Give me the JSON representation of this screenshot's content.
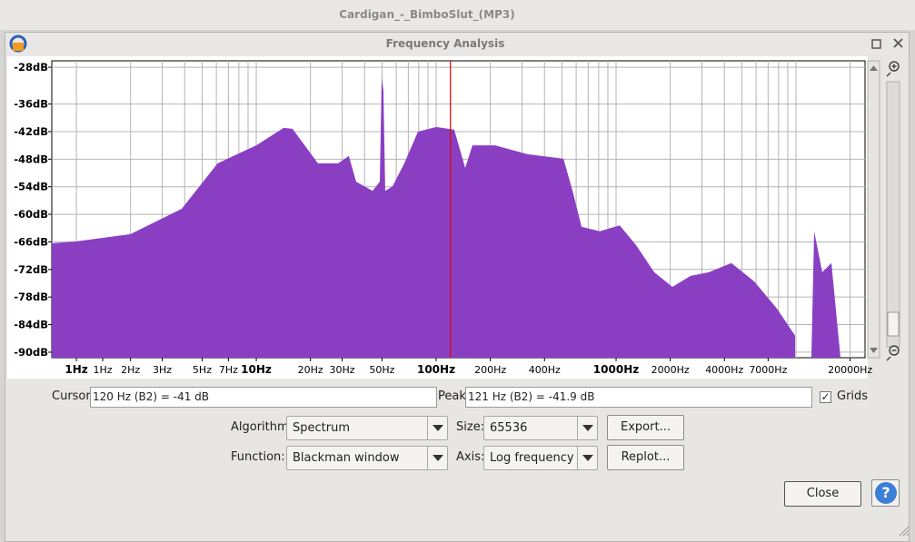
{
  "window": {
    "title": "Cardigan_-_BimboSlut_(MP3)"
  },
  "dialog": {
    "title": "Frequency Analysis",
    "cursor": {
      "label": "Cursor:",
      "value": "120 Hz (B2) = -41 dB"
    },
    "peak": {
      "label": "Peak:",
      "value": "121 Hz (B2) = -41.9 dB"
    },
    "grids": {
      "label": "Grids",
      "checked": true
    },
    "algorithm": {
      "label": "Algorithm:",
      "value": "Spectrum"
    },
    "size": {
      "label": "Size:",
      "value": "65536"
    },
    "function": {
      "label": "Function:",
      "value": "Blackman window"
    },
    "axis": {
      "label": "Axis:",
      "value": "Log frequency"
    },
    "buttons": {
      "export": "Export...",
      "replot": "Replot...",
      "close": "Close",
      "help": "?"
    }
  },
  "chart_data": {
    "type": "area",
    "log_x": true,
    "grid": true,
    "color": "#8a3fc3",
    "x": [
      0.73,
      1,
      2,
      3.85,
      6.1,
      10,
      14.2,
      15.9,
      22,
      28.5,
      32.7,
      35.9,
      44.3,
      48.6,
      49.8,
      50.9,
      52.1,
      57.2,
      66.5,
      79.2,
      100,
      126,
      145,
      159,
      213,
      320,
      510,
      573,
      643,
      811,
      1047,
      1291,
      1630,
      2056,
      2594,
      3274,
      4375,
      5860,
      7837,
      9890,
      10500,
      12190,
      12620,
      14000,
      15740,
      17660
    ],
    "values": [
      -66.3,
      -65.9,
      -64.3,
      -58.8,
      -48.9,
      -45.0,
      -41.2,
      -41.4,
      -48.9,
      -48.9,
      -47.3,
      -52.9,
      -54.9,
      -52.9,
      -30.2,
      -33.1,
      -54.9,
      -53.9,
      -48.9,
      -42.0,
      -41.0,
      -41.6,
      -49.9,
      -45.0,
      -45.0,
      -46.9,
      -47.9,
      -54.9,
      -62.7,
      -63.7,
      -62.4,
      -66.7,
      -72.6,
      -75.8,
      -73.4,
      -72.6,
      -70.6,
      -74.6,
      -80.5,
      -86.4,
      null,
      -90.4,
      -63.7,
      -72.6,
      -70.6,
      -91.0
    ],
    "xlim": [
      0.73,
      24200
    ],
    "ylim": [
      -91.2,
      -26.6
    ],
    "yticks": [
      {
        "value": -28,
        "label": "-28dB"
      },
      {
        "value": -36,
        "label": "-36dB"
      },
      {
        "value": -42,
        "label": "-42dB"
      },
      {
        "value": -48,
        "label": "-48dB"
      },
      {
        "value": -54,
        "label": "-54dB"
      },
      {
        "value": -60,
        "label": "-60dB"
      },
      {
        "value": -66,
        "label": "-66dB"
      },
      {
        "value": -72,
        "label": "-72dB"
      },
      {
        "value": -78,
        "label": "-78dB"
      },
      {
        "value": -84,
        "label": "-84dB"
      },
      {
        "value": -90,
        "label": "-90dB"
      }
    ],
    "xticks": [
      {
        "value": 1,
        "label": "1Hz"
      },
      {
        "value": 1.4,
        "label": "1Hz"
      },
      {
        "value": 2,
        "label": "2Hz"
      },
      {
        "value": 3,
        "label": "3Hz"
      },
      {
        "value": 5,
        "label": "5Hz"
      },
      {
        "value": 7,
        "label": "7Hz"
      },
      {
        "value": 10,
        "label": "10Hz"
      },
      {
        "value": 20,
        "label": "20Hz"
      },
      {
        "value": 30,
        "label": "30Hz"
      },
      {
        "value": 50,
        "label": "50Hz"
      },
      {
        "value": 100,
        "label": "100Hz"
      },
      {
        "value": 200,
        "label": "200Hz"
      },
      {
        "value": 400,
        "label": "400Hz"
      },
      {
        "value": 1000,
        "label": "1000Hz"
      },
      {
        "value": 2000,
        "label": "2000Hz"
      },
      {
        "value": 4000,
        "label": "4000Hz"
      },
      {
        "value": 7000,
        "label": "7000Hz"
      },
      {
        "value": 20000,
        "label": "20000Hz"
      }
    ],
    "xgrid": [
      1,
      2,
      3,
      4,
      5,
      6,
      7,
      8,
      9,
      10,
      20,
      30,
      40,
      50,
      60,
      70,
      80,
      90,
      100,
      200,
      300,
      400,
      500,
      600,
      700,
      800,
      900,
      1000,
      2000,
      3000,
      4000,
      5000,
      6000,
      7000,
      8000,
      9000,
      10000,
      20000
    ],
    "cursor": {
      "x": 120,
      "color": "#e00000"
    }
  }
}
